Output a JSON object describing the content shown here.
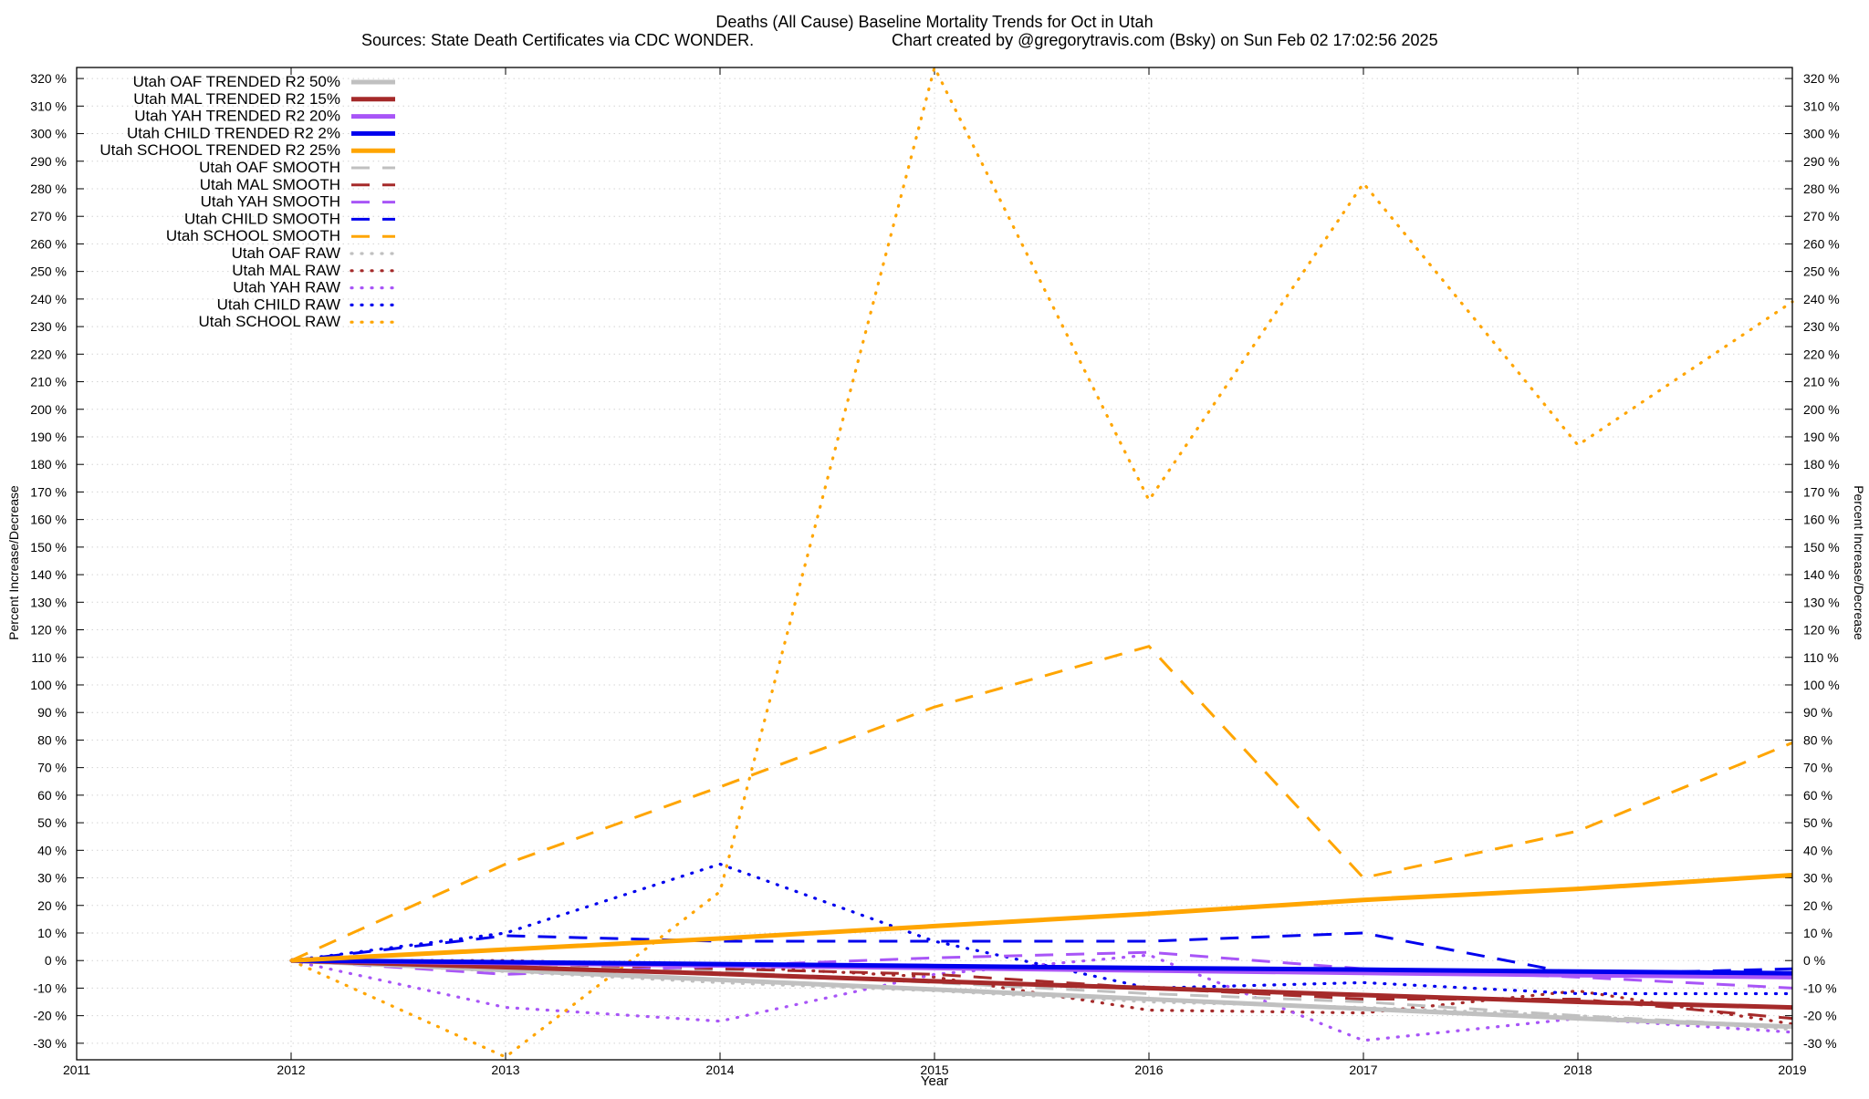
{
  "chart_data": {
    "type": "line",
    "title": "Deaths (All Cause)  Baseline Mortality Trends for Oct in Utah",
    "subtitle_left": "Sources: State Death Certificates via CDC WONDER.",
    "subtitle_right": "Chart created by @gregorytravis.com (Bsky) on Sun Feb 02 17:02:56 2025",
    "xlabel": "Year",
    "ylabel": "Percent Increase/Decrease",
    "y2label": "Percent Increase/Decrease",
    "xlim": [
      2011,
      2019
    ],
    "ylim": [
      -36,
      324
    ],
    "xticks": [
      "2011",
      "2012",
      "2013",
      "2014",
      "2015",
      "2016",
      "2017",
      "2018",
      "2019"
    ],
    "yticks": [
      -30,
      -20,
      -10,
      0,
      10,
      20,
      30,
      40,
      50,
      60,
      70,
      80,
      90,
      100,
      110,
      120,
      130,
      140,
      150,
      160,
      170,
      180,
      190,
      200,
      210,
      220,
      230,
      240,
      250,
      260,
      270,
      280,
      290,
      300,
      310,
      320
    ],
    "ytick_suffix": " %",
    "grid": true,
    "legend_position": "top-left",
    "x": [
      2012,
      2013,
      2014,
      2015,
      2016,
      2017,
      2018,
      2019
    ],
    "series": [
      {
        "name": "Utah OAF TRENDED R2  50%",
        "style": "solid",
        "color": "#c0c0c0",
        "values": [
          0,
          -3.5,
          -7,
          -10.5,
          -14,
          -17.5,
          -21,
          -24
        ]
      },
      {
        "name": "Utah MAL TRENDED R2  15%",
        "style": "solid",
        "color": "#a52a2a",
        "values": [
          0,
          -2.4,
          -4.8,
          -7.5,
          -10,
          -12.5,
          -15,
          -17
        ]
      },
      {
        "name": "Utah YAH TRENDED R2  20%",
        "style": "solid",
        "color": "#a855f7",
        "values": [
          0,
          -0.9,
          -1.8,
          -2.7,
          -3.6,
          -4.5,
          -5.3,
          -6
        ]
      },
      {
        "name": "Utah CHILD TRENDED R2   2%",
        "style": "solid",
        "color": "#0000ee",
        "values": [
          0,
          -0.6,
          -1.3,
          -2,
          -2.7,
          -3.3,
          -4,
          -4.6
        ]
      },
      {
        "name": "Utah SCHOOL TRENDED R2  25%",
        "style": "solid",
        "color": "#ffa500",
        "values": [
          0,
          4,
          8,
          12.5,
          17,
          22,
          26,
          31
        ]
      },
      {
        "name": "Utah OAF SMOOTH",
        "style": "dashed",
        "color": "#c0c0c0",
        "values": [
          0,
          -2,
          -4,
          -8,
          -12,
          -15,
          -20,
          -24
        ]
      },
      {
        "name": "Utah MAL SMOOTH",
        "style": "dashed",
        "color": "#a52a2a",
        "values": [
          0,
          -1,
          -3,
          -5,
          -10,
          -14,
          -14,
          -21
        ]
      },
      {
        "name": "Utah YAH SMOOTH",
        "style": "dashed",
        "color": "#a855f7",
        "values": [
          0,
          -5,
          -2,
          1,
          3,
          -3,
          -6,
          -10
        ]
      },
      {
        "name": "Utah CHILD SMOOTH",
        "style": "dashed",
        "color": "#0000ee",
        "values": [
          0,
          9,
          7,
          7,
          7,
          10,
          -5,
          -3
        ]
      },
      {
        "name": "Utah SCHOOL SMOOTH",
        "style": "dashed",
        "color": "#ffa500",
        "values": [
          0,
          35,
          63,
          92,
          114,
          30,
          47,
          79
        ]
      },
      {
        "name": "Utah OAF RAW",
        "style": "dotted",
        "color": "#c0c0c0",
        "values": [
          0,
          -4,
          -8,
          -11,
          -15,
          -17,
          -20,
          -25
        ]
      },
      {
        "name": "Utah MAL RAW",
        "style": "dotted",
        "color": "#a52a2a",
        "values": [
          0,
          0,
          -2,
          -6,
          -18,
          -19,
          -11,
          -23
        ]
      },
      {
        "name": "Utah YAH RAW",
        "style": "dotted",
        "color": "#a855f7",
        "values": [
          0,
          -17,
          -22,
          -5,
          2,
          -29,
          -21,
          -26
        ]
      },
      {
        "name": "Utah CHILD RAW",
        "style": "dotted",
        "color": "#0000ee",
        "values": [
          0,
          10,
          35,
          7,
          -10,
          -8,
          -12,
          -12
        ]
      },
      {
        "name": "Utah SCHOOL RAW",
        "style": "dotted",
        "color": "#ffa500",
        "values": [
          0,
          -35,
          25,
          324,
          167,
          282,
          187,
          239
        ]
      }
    ]
  }
}
